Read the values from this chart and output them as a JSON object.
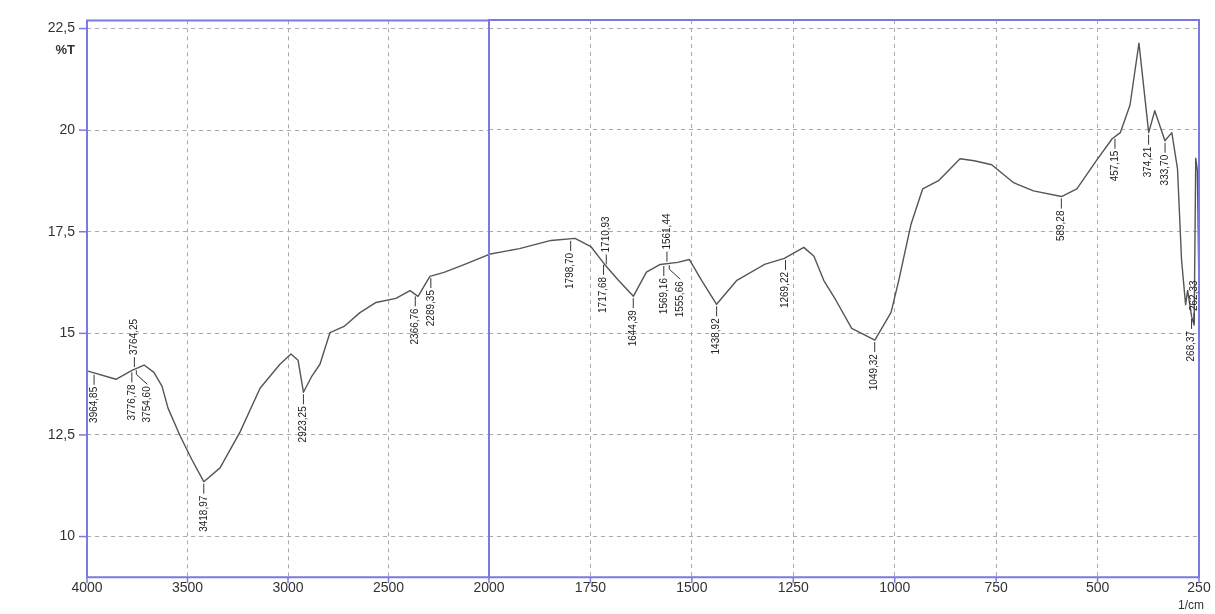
{
  "chart_data": [
    {
      "type": "line",
      "ylabel": "%T",
      "xlim": [
        4000,
        2000
      ],
      "xticks": [
        4000,
        3500,
        3000,
        2500,
        2000
      ],
      "ylim": [
        9,
        22.7
      ],
      "yticks": [
        10,
        {
          "value": 12.5,
          "label": "12,5"
        },
        15,
        {
          "value": 17.5,
          "label": "17,5"
        },
        20,
        {
          "value": 22.5,
          "label": "22,5"
        }
      ],
      "grid": true,
      "marker": "none",
      "series": [
        {
          "color": "#555555",
          "x": [
            3995,
            3856,
            3776,
            3716,
            3667,
            3627,
            3597,
            3537,
            3478,
            3419,
            3338,
            3239,
            3139,
            3040,
            2985,
            2950,
            2923,
            2881,
            2841,
            2791,
            2721,
            2642,
            2562,
            2463,
            2393,
            2353,
            2294,
            2224,
            2124,
            2000
          ],
          "values": [
            14.07,
            13.87,
            14.09,
            14.22,
            14.04,
            13.7,
            13.16,
            12.48,
            11.89,
            11.35,
            11.69,
            12.57,
            13.65,
            14.24,
            14.49,
            14.34,
            13.55,
            13.95,
            14.24,
            15.02,
            15.17,
            15.51,
            15.76,
            15.86,
            16.05,
            15.91,
            16.4,
            16.5,
            16.69,
            16.94
          ]
        }
      ],
      "annotations": [
        {
          "text": "3964,85",
          "x": 3964.85,
          "y": 14.03
        },
        {
          "text": "3776,78",
          "x": 3776.78,
          "y": 14.09
        },
        {
          "text": "3764,25",
          "x": 3764.25,
          "y": 14.12
        },
        {
          "text": "3754,60",
          "x": 3754.6,
          "y": 14.14
        },
        {
          "text": "3418,97",
          "x": 3418.97,
          "y": 11.35
        },
        {
          "text": "2923,25",
          "x": 2923.25,
          "y": 13.55
        },
        {
          "text": "2366,76",
          "x": 2366.76,
          "y": 15.96
        },
        {
          "text": "2289,35",
          "x": 2289.35,
          "y": 16.41
        }
      ]
    },
    {
      "type": "line",
      "xlabel": "1/cm",
      "xlim": [
        2000,
        250
      ],
      "xticks": [
        1750,
        1500,
        1250,
        1000,
        750,
        500,
        250
      ],
      "ylim": [
        9,
        22.7
      ],
      "yticks": [
        10,
        12.5,
        15,
        17.5,
        20,
        22.5
      ],
      "tick_labels": "x",
      "grid": true,
      "marker": "none",
      "series": [
        {
          "color": "#555555",
          "x": [
            2000,
            1925,
            1847,
            1788,
            1749,
            1715,
            1681,
            1644,
            1612,
            1578,
            1535,
            1506,
            1476,
            1439,
            1389,
            1321,
            1272,
            1224,
            1199,
            1175,
            1145,
            1106,
            1049,
            1009,
            990,
            960,
            931,
            892,
            839,
            804,
            761,
            707,
            658,
            589,
            551,
            503,
            464,
            444,
            420,
            398,
            374,
            359,
            334,
            317,
            303,
            293,
            283,
            278,
            268,
            262,
            258,
            254,
            250
          ],
          "values": [
            16.94,
            17.08,
            17.28,
            17.33,
            17.13,
            16.69,
            16.3,
            15.91,
            16.5,
            16.69,
            16.74,
            16.81,
            16.3,
            15.71,
            16.3,
            16.69,
            16.84,
            17.11,
            16.89,
            16.3,
            15.81,
            15.12,
            14.83,
            15.51,
            16.3,
            17.67,
            18.55,
            18.75,
            19.29,
            19.24,
            19.14,
            18.7,
            18.5,
            18.36,
            18.55,
            19.24,
            19.78,
            19.93,
            20.61,
            22.13,
            19.93,
            20.47,
            19.73,
            19.93,
            19.04,
            16.8,
            15.7,
            16.05,
            15.4,
            15.2,
            19.3,
            19.0,
            16.0
          ]
        }
      ],
      "annotations": [
        {
          "text": "1798,70",
          "x": 1798.7,
          "y": 17.32
        },
        {
          "text": "1717,68",
          "x": 1717.68,
          "y": 16.73
        },
        {
          "text": "1710,93",
          "x": 1710.93,
          "y": 16.64
        },
        {
          "text": "1644,39",
          "x": 1644.39,
          "y": 15.91
        },
        {
          "text": "1569,16",
          "x": 1569.16,
          "y": 16.7
        },
        {
          "text": "1561,44",
          "x": 1561.44,
          "y": 16.71
        },
        {
          "text": "1555,66",
          "x": 1555.66,
          "y": 16.72
        },
        {
          "text": "1438,92",
          "x": 1438.92,
          "y": 15.71
        },
        {
          "text": "1269,22",
          "x": 1269.22,
          "y": 16.85
        },
        {
          "text": "1049,32",
          "x": 1049.32,
          "y": 14.83
        },
        {
          "text": "589,28",
          "x": 589.28,
          "y": 18.36
        },
        {
          "text": "457,15",
          "x": 457.15,
          "y": 19.83
        },
        {
          "text": "374,21",
          "x": 374.21,
          "y": 19.93
        },
        {
          "text": "333,70",
          "x": 333.7,
          "y": 19.73
        },
        {
          "text": "268,37",
          "x": 268.37,
          "y": 15.4
        },
        {
          "text": "262,33",
          "x": 262.33,
          "y": 15.2
        }
      ]
    }
  ]
}
